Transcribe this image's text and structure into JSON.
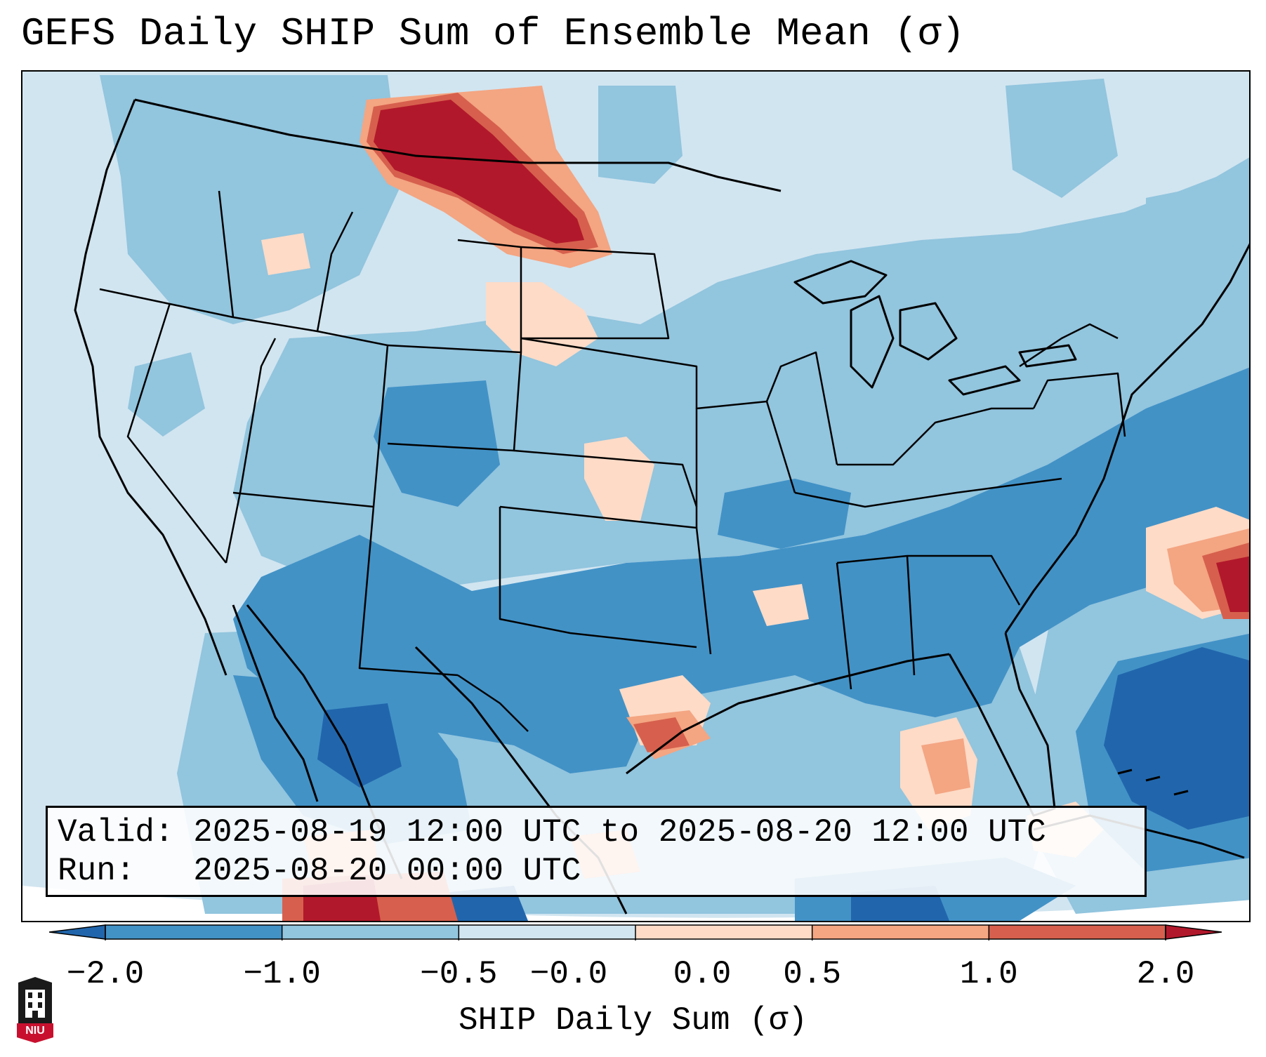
{
  "title": "GEFS Daily SHIP Sum of Ensemble Mean (σ)",
  "info": {
    "valid_label": "Valid:",
    "valid_value": "2025-08-19 12:00 UTC to 2025-08-20 12:00 UTC",
    "run_label": "Run:",
    "run_value": "2025-08-20 00:00 UTC"
  },
  "colorbar": {
    "label": "SHIP Daily Sum (σ)",
    "ticks": [
      "−2.0",
      "−1.0",
      "−0.5",
      "−0.0",
      "0.0",
      "0.5",
      "1.0",
      "2.0"
    ],
    "colors": [
      "#4292c6",
      "#92c5de",
      "#d1e5f0",
      "#fddbc7",
      "#f4a582",
      "#d6604d"
    ],
    "under_color": "#2166ac",
    "over_color": "#b2182b"
  },
  "palette": {
    "ocean_background": "#d1e5f0",
    "low_strong": "#2166ac",
    "low": "#4292c6",
    "low_moderate": "#92c5de",
    "near_zero_low": "#d1e5f0",
    "near_zero_high": "#fddbc7",
    "high_moderate": "#f4a582",
    "high": "#d6604d",
    "high_strong": "#b2182b"
  },
  "logo": {
    "text": "NIU",
    "color": "#c8102e",
    "icon": "university-seal-icon"
  }
}
